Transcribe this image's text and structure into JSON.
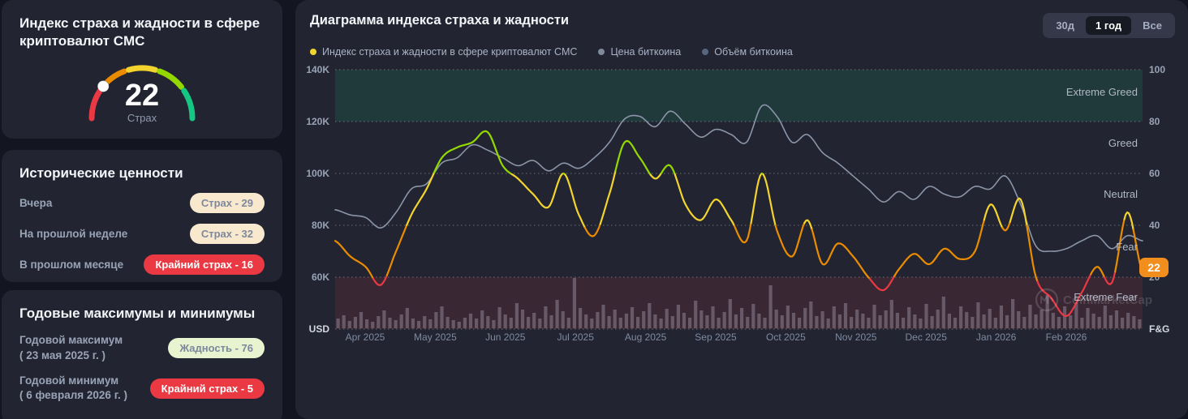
{
  "sidebar": {
    "index_card": {
      "title": "Индекс страха и жадности в сфере криптовалют CMC",
      "gauge": {
        "value": 22,
        "label": "Страх",
        "segment_colors": [
          "#ea3943",
          "#ea8c00",
          "#f3d42f",
          "#93d900",
          "#16c784"
        ]
      }
    },
    "history_card": {
      "title": "Исторические ценности",
      "rows": [
        {
          "label": "Вчера",
          "badge": "Страх - 29",
          "badge_type": "fear"
        },
        {
          "label": "На прошлой неделе",
          "badge": "Страх - 32",
          "badge_type": "fear"
        },
        {
          "label": "В прошлом месяце",
          "badge": "Крайний страх - 16",
          "badge_type": "extreme-fear"
        }
      ]
    },
    "yearly_card": {
      "title": "Годовые максимумы и минимумы",
      "rows": [
        {
          "label": "Годовой максимум",
          "sublabel": "( 23 мая 2025 г. )",
          "badge": "Жадность - 76",
          "badge_type": "greed"
        },
        {
          "label": "Годовой минимум",
          "sublabel": "( 6 февраля 2026 г. )",
          "badge": "Крайний страх - 5",
          "badge_type": "extreme-fear"
        }
      ]
    }
  },
  "chart_panel": {
    "title": "Диаграмма индекса страха и жадности",
    "legend": [
      {
        "label": "Индекс страха и жадности в сфере криптовалют CMC",
        "color": "#f3d42f"
      },
      {
        "label": "Цена биткоина",
        "color": "#808a9d"
      },
      {
        "label": "Объём биткоина",
        "color": "#58667e"
      }
    ],
    "range_buttons": [
      {
        "label": "30д",
        "active": false
      },
      {
        "label": "1 год",
        "active": true
      },
      {
        "label": "Все",
        "active": false
      }
    ],
    "watermark": "CoinMarketCap",
    "current_badge": {
      "value": "22",
      "color": "#f28e1d"
    }
  },
  "chart_data": {
    "type": "line",
    "title": "Диаграмма индекса страха и жадности",
    "x_labels": [
      "Apr 2025",
      "May 2025",
      "Jun 2025",
      "Jul 2025",
      "Aug 2025",
      "Sep 2025",
      "Oct 2025",
      "Nov 2025",
      "Dec 2025",
      "Jan 2026",
      "Feb 2026"
    ],
    "left_axis": {
      "title": "USD",
      "ticks": [
        "140K",
        "120K",
        "100K",
        "80K",
        "60K"
      ],
      "range_usd": [
        40000,
        140000
      ]
    },
    "right_axis": {
      "title": "F&G",
      "ticks": [
        "100",
        "80",
        "60",
        "40",
        "20"
      ],
      "range": [
        0,
        100
      ]
    },
    "zone_labels": [
      "Extreme Greed",
      "Greed",
      "Neutral",
      "Fear",
      "Extreme Fear"
    ],
    "zone_bands": {
      "extreme_greed": [
        80,
        100
      ],
      "extreme_fear": [
        0,
        20
      ]
    },
    "grid": "dotted-horizontal",
    "legend_position": "top-left",
    "series": [
      {
        "name": "Индекс страха и жадности в сфере криптовалют CMC",
        "unit": "index 0-100",
        "sampling": "weekly, Mar 2025 - Mar 2026",
        "color_rule": "red <20, orange 20-40, yellow 40-60, green >60",
        "values": [
          34,
          28,
          24,
          17,
          30,
          44,
          54,
          66,
          70,
          72,
          76,
          63,
          58,
          52,
          47,
          60,
          44,
          36,
          52,
          72,
          66,
          58,
          63,
          48,
          42,
          50,
          42,
          34,
          60,
          38,
          28,
          42,
          25,
          33,
          28,
          20,
          15,
          23,
          29,
          25,
          31,
          27,
          30,
          48,
          38,
          50,
          20,
          12,
          5,
          14,
          24,
          18,
          45,
          22
        ],
        "current": 22
      },
      {
        "name": "Цена биткоина",
        "unit": "K USD",
        "sampling": "weekly, Mar 2025 - Mar 2026",
        "color": "#8b95a9",
        "values": [
          86,
          84,
          83,
          79,
          85,
          94,
          96,
          104,
          106,
          111,
          109,
          106,
          103,
          105,
          101,
          104,
          102,
          106,
          112,
          121,
          122,
          118,
          124,
          119,
          114,
          117,
          115,
          112,
          126,
          122,
          112,
          115,
          108,
          104,
          99,
          94,
          89,
          93,
          90,
          95,
          92,
          91,
          95,
          94,
          99,
          88,
          72,
          70,
          71,
          74,
          76,
          71,
          76,
          74
        ]
      },
      {
        "name": "Объём биткоина",
        "unit": "relative bar height px",
        "color": "rgba(190,182,202,0.35)",
        "values": [
          12,
          16,
          9,
          14,
          20,
          11,
          8,
          15,
          22,
          13,
          10,
          17,
          25,
          12,
          9,
          15,
          11,
          20,
          27,
          14,
          10,
          8,
          13,
          18,
          12,
          22,
          15,
          10,
          26,
          17,
          13,
          31,
          23,
          14,
          19,
          12,
          27,
          16,
          35,
          21,
          13,
          62,
          25,
          17,
          12,
          20,
          29,
          15,
          23,
          13,
          18,
          26,
          14,
          21,
          31,
          17,
          12,
          24,
          15,
          29,
          19,
          13,
          34,
          22,
          16,
          27,
          13,
          20,
          36,
          17,
          25,
          14,
          30,
          18,
          13,
          53,
          23,
          16,
          28,
          19,
          13,
          25,
          33,
          15,
          21,
          12,
          27,
          17,
          31,
          14,
          23,
          18,
          13,
          29,
          16,
          22,
          35,
          19,
          13,
          26,
          17,
          12,
          30,
          15,
          23,
          39,
          18,
          13,
          27,
          20,
          14,
          32,
          17,
          24,
          13,
          28,
          16,
          36,
          21,
          14,
          29,
          17,
          23,
          41,
          19,
          14,
          27,
          16,
          31,
          13,
          25,
          18,
          14,
          28,
          16,
          22,
          13,
          19,
          15,
          11
        ]
      }
    ],
    "colors": {
      "fng_red": "#ea3943",
      "fng_orange": "#ea8c00",
      "fng_yellow": "#f3d42f",
      "fng_green": "#93d900",
      "btc_line": "#8b95a9",
      "greed_band": "rgba(22,199,132,0.13)",
      "fear_band": "rgba(234,57,67,0.12)"
    }
  }
}
